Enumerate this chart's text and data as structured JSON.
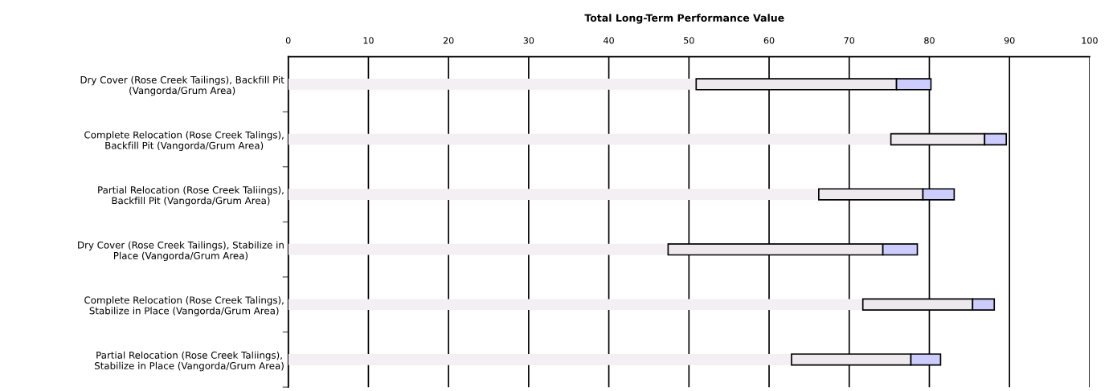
{
  "chart_data": {
    "type": "bar",
    "orientation": "horizontal",
    "stacked": true,
    "title": "Total Long-Term Performance Value",
    "categories": [
      "Dry Cover (Rose Creek Tailings), Backfill Pit\n(Vangorda/Grum Area)",
      "Complete Relocation (Rose Creek Talings),\nBackfill Pit (Vangorda/Grum Area)",
      "Partial Relocation (Rose Creek Taliings),\nBackfill Pit (Vangorda/Grum Area)",
      "Dry Cover (Rose Creek Tailings), Stabilize in\nPlace (Vangorda/Grum Area)",
      "Complete Relocation (Rose Creek Talings),\nStabilize in Place (Vangorda/Grum Area)",
      "Partial Relocation (Rose Creek Taliings),\nStabilize in Place (Vangorda/Grum Area)"
    ],
    "series": [
      {
        "color": "#f4eff2",
        "values": [
          50.9,
          75.2,
          66.2,
          47.4,
          71.7,
          62.8
        ]
      },
      {
        "color": "#ede9ed",
        "values": [
          25.0,
          11.7,
          13.0,
          26.8,
          13.7,
          14.9
        ]
      },
      {
        "color": "#ccccff",
        "values": [
          4.3,
          2.7,
          3.9,
          4.3,
          2.7,
          3.7
        ]
      }
    ],
    "xlim": [
      0,
      100
    ],
    "xticks": [
      0,
      10,
      20,
      30,
      40,
      50,
      60,
      70,
      80,
      90,
      100
    ],
    "grid": "x"
  }
}
